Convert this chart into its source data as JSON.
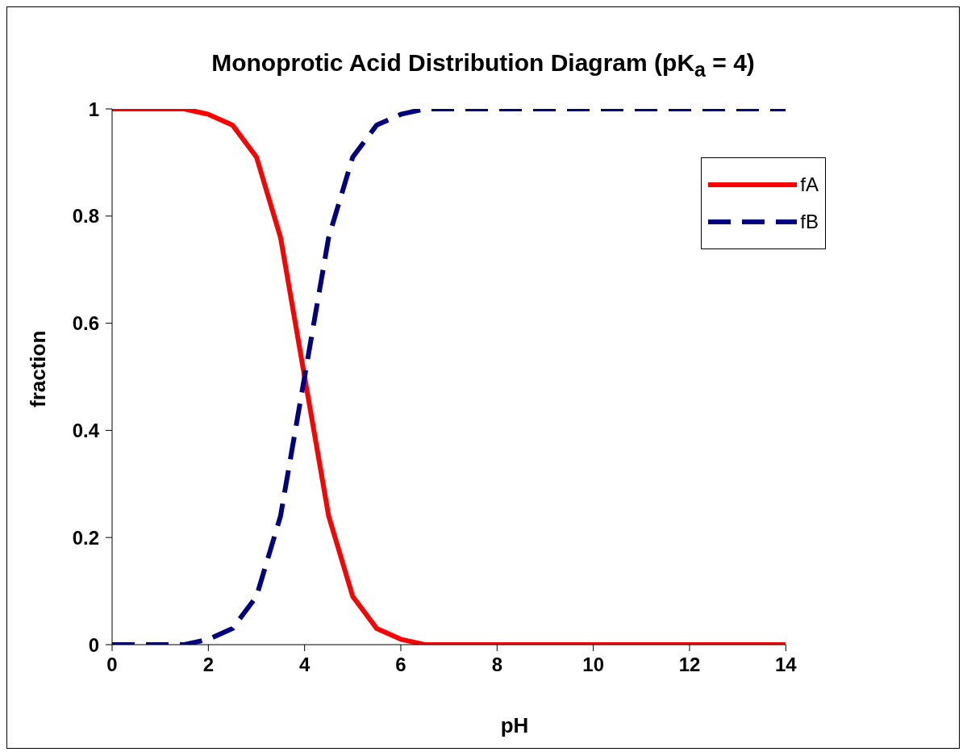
{
  "chart_data": {
    "type": "line",
    "title": "Monoprotic Acid Distribution Diagram (pK$_{a}$ = 4)",
    "xlabel": "pH",
    "ylabel": "fraction",
    "x": [
      0,
      0.5,
      1,
      1.5,
      2,
      2.5,
      3,
      3.5,
      4,
      4.5,
      5,
      5.5,
      6,
      6.5,
      7,
      7.5,
      8,
      8.5,
      9,
      9.5,
      10,
      10.5,
      11,
      11.5,
      12,
      12.5,
      13,
      13.5,
      14
    ],
    "series": [
      {
        "name": "fA",
        "color": "#ff0000",
        "line_style": "solid",
        "values": [
          1,
          1,
          1,
          1,
          0.99,
          0.97,
          0.91,
          0.76,
          0.5,
          0.24,
          0.09,
          0.03,
          0.01,
          0,
          0,
          0,
          0,
          0,
          0,
          0,
          0,
          0,
          0,
          0,
          0,
          0,
          0,
          0,
          0
        ]
      },
      {
        "name": "fB",
        "color": "#000080",
        "line_style": "dashed",
        "values": [
          0,
          0,
          0,
          0,
          0.01,
          0.03,
          0.09,
          0.24,
          0.5,
          0.76,
          0.91,
          0.97,
          0.99,
          1,
          1,
          1,
          1,
          1,
          1,
          1,
          1,
          1,
          1,
          1,
          1,
          1,
          1,
          1,
          1
        ]
      }
    ],
    "xlim": [
      0,
      14
    ],
    "xticks": [
      0,
      2,
      4,
      6,
      8,
      10,
      12,
      14
    ],
    "ylim": [
      0,
      1
    ],
    "yticks": [
      0,
      0.2,
      0.4,
      0.6,
      0.8,
      1
    ],
    "grid": false,
    "legend": "top right",
    "marker": "none"
  }
}
